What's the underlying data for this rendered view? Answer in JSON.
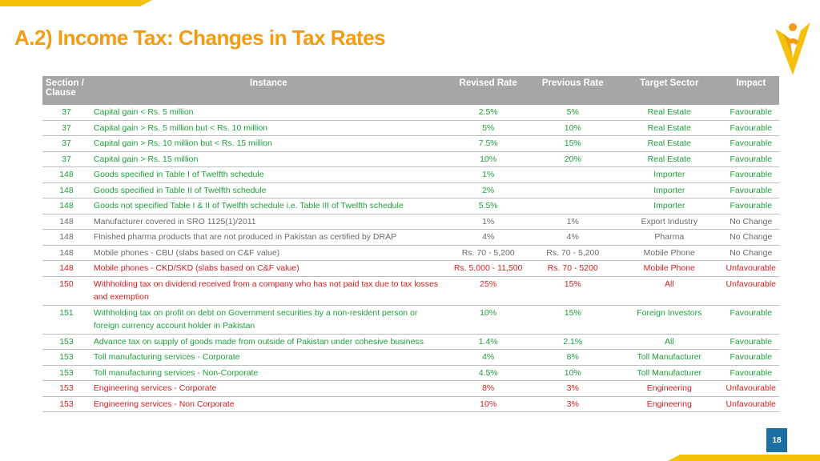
{
  "title": "A.2) Income Tax: Changes in Tax Rates",
  "page_number": "18",
  "logo": "yellow-v-logo",
  "colors": {
    "title": "#f39c12",
    "favourable": "#1f9e3a",
    "no_change": "#6b6b6b",
    "unfavourable": "#d42020",
    "header_bg": "#a6a6a6",
    "page_badge": "#1a6fa3"
  },
  "table": {
    "headers": {
      "section": "Section / Clause",
      "instance": "Instance",
      "revised_rate": "Revised Rate",
      "previous_rate": "Previous Rate",
      "target_sector": "Target Sector",
      "impact": "Impact"
    },
    "rows": [
      {
        "section": "37",
        "instance": "Capital gain < Rs. 5 million",
        "revised": "2.5%",
        "previous": "5%",
        "sector": "Real Estate",
        "impact": "Favourable",
        "status": "favourable"
      },
      {
        "section": "37",
        "instance": "Capital gain > Rs. 5 million but < Rs. 10 million",
        "revised": "5%",
        "previous": "10%",
        "sector": "Real Estate",
        "impact": "Favourable",
        "status": "favourable"
      },
      {
        "section": "37",
        "instance": "Capital gain > Rs. 10 million but < Rs. 15 million",
        "revised": "7.5%",
        "previous": "15%",
        "sector": "Real Estate",
        "impact": "Favourable",
        "status": "favourable"
      },
      {
        "section": "37",
        "instance": "Capital gain > Rs. 15 million",
        "revised": "10%",
        "previous": "20%",
        "sector": "Real Estate",
        "impact": "Favourable",
        "status": "favourable"
      },
      {
        "section": "148",
        "instance": "Goods specified in Table I of Twelfth schedule",
        "revised": "1%",
        "previous": "",
        "sector": "Importer",
        "impact": "Favourable",
        "status": "favourable"
      },
      {
        "section": "148",
        "instance": "Goods specified in Table II of Twelfth schedule",
        "revised": "2%",
        "previous": "",
        "sector": "Importer",
        "impact": "Favourable",
        "status": "favourable"
      },
      {
        "section": "148",
        "instance": "Goods not specified Table I & II of Twelfth schedule i.e. Table III of Twelfth schedule",
        "revised": "5.5%",
        "previous": "",
        "sector": "Importer",
        "impact": "Favourable",
        "status": "favourable"
      },
      {
        "section": "148",
        "instance": "Manufacturer covered in SRO 1125(1)/2011",
        "revised": "1%",
        "previous": "1%",
        "sector": "Export Industry",
        "impact": "No Change",
        "status": "nochange"
      },
      {
        "section": "148",
        "instance": "Finished pharma products that are not produced in Pakistan as certified by DRAP",
        "revised": "4%",
        "previous": "4%",
        "sector": "Pharma",
        "impact": "No Change",
        "status": "nochange"
      },
      {
        "section": "148",
        "instance": "Mobile phones - CBU (slabs based on C&F value)",
        "revised": "Rs. 70 - 5,200",
        "previous": "Rs. 70 - 5,200",
        "sector": "Mobile Phone",
        "impact": "No Change",
        "status": "nochange"
      },
      {
        "section": "148",
        "instance": "Mobile phones - CKD/SKD (slabs based on C&F value)",
        "revised": "Rs. 5,000 - 11,500",
        "previous": "Rs. 70 - 5200",
        "sector": "Mobile Phone",
        "impact": "Unfavourable",
        "status": "unfavourable"
      },
      {
        "section": "150",
        "instance": "Withholding tax on dividend received from a company who has not paid tax due to tax losses and exemption",
        "revised": "25%",
        "previous": "15%",
        "sector": "All",
        "impact": "Unfavourable",
        "status": "unfavourable"
      },
      {
        "section": "151",
        "instance": "Withholding tax on profit on debt on Government securities by a non-resident person or foreign currency account holder in Pakistan",
        "revised": "10%",
        "previous": "15%",
        "sector": "Foreign Investors",
        "impact": "Favourable",
        "status": "favourable"
      },
      {
        "section": "153",
        "instance": "Advance tax on supply of goods made from outside of Pakistan under cohesive business",
        "revised": "1.4%",
        "previous": "2.1%",
        "sector": "All",
        "impact": "Favourable",
        "status": "favourable"
      },
      {
        "section": "153",
        "instance": "Toll manufacturing services - Corporate",
        "revised": "4%",
        "previous": "8%",
        "sector": "Toll Manufacturer",
        "impact": "Favourable",
        "status": "favourable"
      },
      {
        "section": "153",
        "instance": "Toll manufacturing services - Non-Corporate",
        "revised": "4.5%",
        "previous": "10%",
        "sector": "Toll Manufacturer",
        "impact": "Favourable",
        "status": "favourable"
      },
      {
        "section": "153",
        "instance": "Engineering services - Corporate",
        "revised": "8%",
        "previous": "3%",
        "sector": "Engineering",
        "impact": "Unfavourable",
        "status": "unfavourable"
      },
      {
        "section": "153",
        "instance": "Engineering services - Non Corporate",
        "revised": "10%",
        "previous": "3%",
        "sector": "Engineering",
        "impact": "Unfavourable",
        "status": "unfavourable"
      }
    ]
  }
}
